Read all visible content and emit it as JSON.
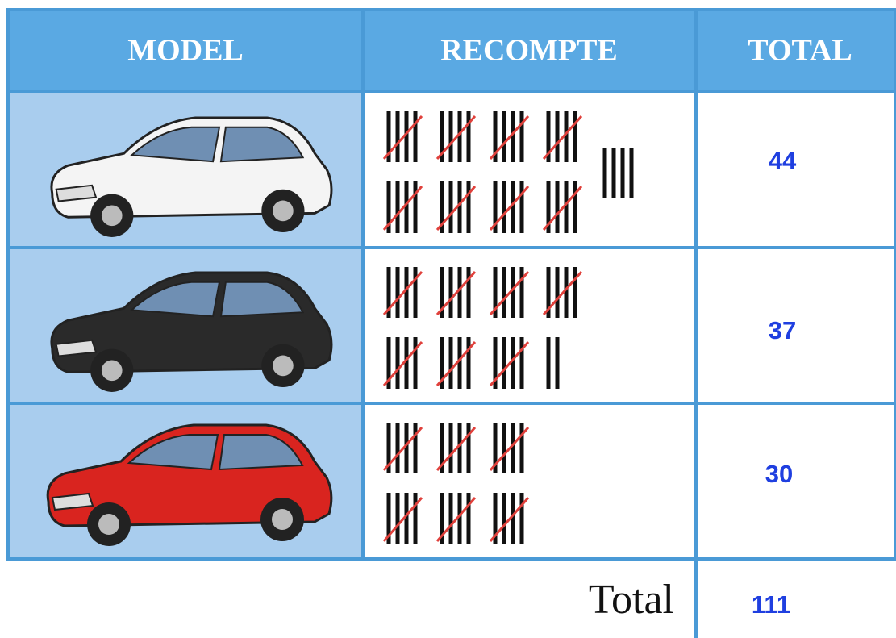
{
  "table": {
    "headers": [
      "MODEL",
      "RECOMPTE",
      "TOTAL"
    ],
    "rows": [
      {
        "total": 44
      },
      {
        "total": 37
      },
      {
        "total": 30
      }
    ],
    "footer": {
      "label": "Total",
      "total": 111
    }
  }
}
